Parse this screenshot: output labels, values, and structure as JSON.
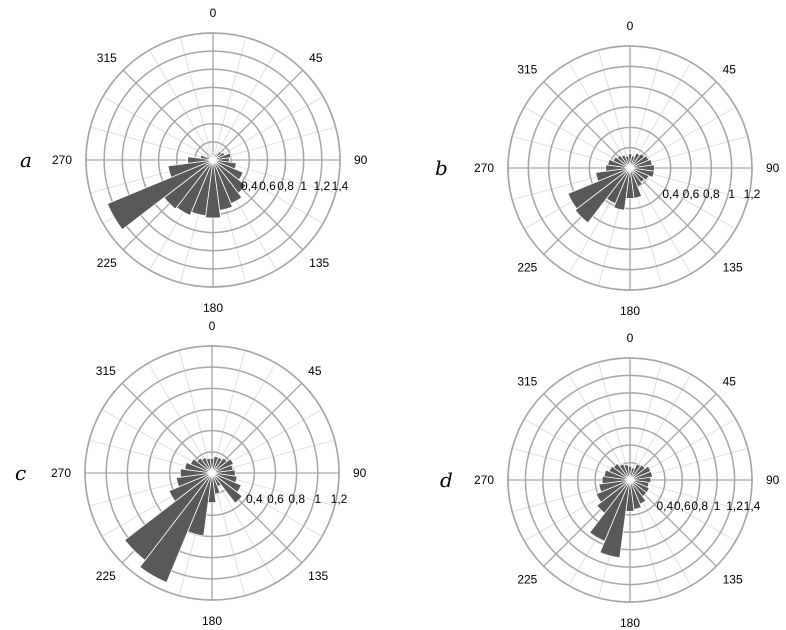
{
  "chart_data": [
    {
      "type": "polar-bar",
      "panel_label": "a",
      "direction_labels": [
        "0",
        "45",
        "90",
        "135",
        "180",
        "225",
        "270",
        "315"
      ],
      "radial_ticks": [
        "0,4",
        "0,6",
        "0,8",
        "1",
        "1,2",
        "1,4"
      ],
      "rmax": 1.4,
      "sector_width_deg": 15,
      "directions_deg": [
        0,
        15,
        30,
        45,
        60,
        75,
        90,
        105,
        120,
        135,
        150,
        165,
        180,
        195,
        210,
        225,
        240,
        255,
        270,
        285,
        300,
        315,
        330,
        345
      ],
      "values": [
        0.08,
        0.06,
        0.08,
        0.12,
        0.14,
        0.2,
        0.18,
        0.26,
        0.36,
        0.46,
        0.52,
        0.56,
        0.64,
        0.62,
        0.66,
        0.68,
        1.26,
        0.5,
        0.28,
        0.14,
        0.08,
        0.06,
        0.06,
        0.06
      ]
    },
    {
      "type": "polar-bar",
      "panel_label": "b",
      "direction_labels": [
        "0",
        "45",
        "90",
        "135",
        "180",
        "225",
        "270",
        "315"
      ],
      "radial_ticks": [
        "0,4",
        "0,6",
        "0,8",
        "1",
        "1,2"
      ],
      "rmax": 1.2,
      "sector_width_deg": 15,
      "directions_deg": [
        0,
        15,
        30,
        45,
        60,
        75,
        90,
        105,
        120,
        135,
        150,
        165,
        180,
        195,
        210,
        225,
        240,
        255,
        270,
        285,
        300,
        315,
        330,
        345
      ],
      "values": [
        0.14,
        0.12,
        0.16,
        0.18,
        0.2,
        0.22,
        0.24,
        0.24,
        0.2,
        0.18,
        0.2,
        0.3,
        0.3,
        0.42,
        0.38,
        0.68,
        0.66,
        0.34,
        0.24,
        0.22,
        0.18,
        0.16,
        0.14,
        0.12
      ]
    },
    {
      "type": "polar-bar",
      "panel_label": "c",
      "direction_labels": [
        "0",
        "45",
        "90",
        "135",
        "180",
        "225",
        "270",
        "315"
      ],
      "radial_ticks": [
        "0,4",
        "0,6",
        "0,8",
        "1",
        "1,2"
      ],
      "rmax": 1.2,
      "sector_width_deg": 15,
      "directions_deg": [
        0,
        15,
        30,
        45,
        60,
        75,
        90,
        105,
        120,
        135,
        150,
        165,
        180,
        195,
        210,
        225,
        240,
        255,
        270,
        285,
        300,
        315,
        330,
        345
      ],
      "values": [
        0.14,
        0.16,
        0.16,
        0.18,
        0.22,
        0.2,
        0.22,
        0.24,
        0.3,
        0.36,
        0.14,
        0.2,
        0.28,
        0.6,
        1.12,
        1.04,
        0.44,
        0.34,
        0.3,
        0.26,
        0.22,
        0.18,
        0.16,
        0.14
      ]
    },
    {
      "type": "polar-bar",
      "panel_label": "d",
      "direction_labels": [
        "0",
        "45",
        "90",
        "135",
        "180",
        "225",
        "270",
        "315"
      ],
      "radial_ticks": [
        "0,4",
        "0,6",
        "0,8",
        "1",
        "1,2",
        "1,4"
      ],
      "rmax": 1.4,
      "sector_width_deg": 15,
      "directions_deg": [
        0,
        15,
        30,
        45,
        60,
        75,
        90,
        105,
        120,
        135,
        150,
        165,
        180,
        195,
        210,
        225,
        240,
        255,
        270,
        285,
        300,
        315,
        330,
        345
      ],
      "values": [
        0.16,
        0.14,
        0.2,
        0.22,
        0.26,
        0.26,
        0.24,
        0.22,
        0.24,
        0.24,
        0.3,
        0.34,
        0.36,
        0.9,
        0.76,
        0.48,
        0.42,
        0.36,
        0.32,
        0.3,
        0.26,
        0.24,
        0.2,
        0.18
      ]
    }
  ]
}
